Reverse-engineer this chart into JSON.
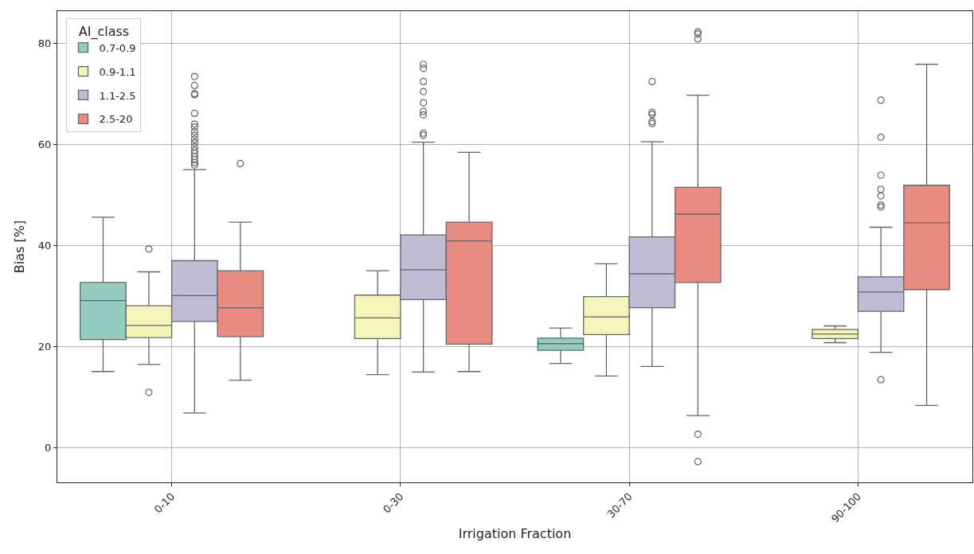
{
  "chart_data": {
    "type": "box",
    "xlabel": "Irrigation Fraction",
    "ylabel": "Bias [%]",
    "legend_title": "AI_class",
    "legend": "top left",
    "grid": true,
    "categories": [
      "0-10",
      "0-30",
      "30-70",
      "90-100"
    ],
    "ylim": [
      -6.8,
      86.3
    ],
    "yticks": [
      0,
      20,
      40,
      60,
      80
    ],
    "series": [
      {
        "name": "0.7-0.9",
        "color": "#93cdc1",
        "boxes": [
          {
            "low": 15.1,
            "q1": 21.4,
            "median": 29.1,
            "q3": 32.7,
            "high": 45.6
          },
          null,
          {
            "low": 16.7,
            "q1": 19.3,
            "median": 20.6,
            "q3": 21.7,
            "high": 23.7
          },
          null
        ]
      },
      {
        "name": "0.9-1.1",
        "color": "#f5f5bb",
        "boxes": [
          {
            "low": 16.5,
            "q1": 21.8,
            "median": 24.2,
            "q3": 28.1,
            "high": 34.8,
            "outliers": [
              39.3,
              11.0
            ]
          },
          {
            "low": 14.5,
            "q1": 21.6,
            "median": 25.7,
            "q3": 30.2,
            "high": 35.0
          },
          {
            "low": 14.2,
            "q1": 22.4,
            "median": 25.9,
            "q3": 29.9,
            "high": 36.4
          },
          {
            "low": 20.8,
            "q1": 21.6,
            "median": 22.5,
            "q3": 23.4,
            "high": 24.1
          }
        ]
      },
      {
        "name": "1.1-2.5",
        "color": "#c0bcd6",
        "boxes": [
          {
            "low": 6.9,
            "q1": 25.0,
            "median": 30.1,
            "q3": 37.0,
            "high": 55.0,
            "outliers": [
              73.4,
              71.6,
              70.0,
              69.8,
              66.1,
              64.0,
              63.4,
              62.5,
              61.8,
              61.0,
              60.3,
              59.5,
              58.8,
              58.2,
              57.6,
              57.0,
              56.4,
              55.9
            ]
          },
          {
            "low": 15.0,
            "q1": 29.3,
            "median": 35.2,
            "q3": 42.1,
            "high": 60.4,
            "outliers": [
              75.8,
              75.0,
              72.4,
              70.4,
              68.2,
              66.5,
              65.8,
              62.2,
              61.8
            ]
          },
          {
            "low": 16.1,
            "q1": 27.7,
            "median": 34.4,
            "q3": 41.7,
            "high": 60.5,
            "outliers": [
              72.4,
              66.3,
              65.9,
              64.5,
              64.1
            ]
          },
          {
            "low": 18.9,
            "q1": 27.0,
            "median": 30.8,
            "q3": 33.8,
            "high": 43.6,
            "outliers": [
              68.7,
              61.4,
              53.9,
              51.1,
              49.8,
              48.0,
              47.6,
              13.5
            ]
          }
        ]
      },
      {
        "name": "2.5-20",
        "color": "#e98b80",
        "boxes": [
          {
            "low": 13.4,
            "q1": 22.0,
            "median": 27.7,
            "q3": 35.0,
            "high": 44.6,
            "outliers": [
              56.2
            ]
          },
          {
            "low": 15.1,
            "q1": 20.5,
            "median": 40.9,
            "q3": 44.6,
            "high": 58.4
          },
          {
            "low": 6.4,
            "q1": 32.7,
            "median": 46.2,
            "q3": 51.5,
            "high": 69.7,
            "outliers": [
              82.2,
              81.8,
              80.8,
              2.7,
              -2.7
            ]
          },
          {
            "low": 8.4,
            "q1": 31.3,
            "median": 44.5,
            "q3": 51.9,
            "high": 75.8
          }
        ]
      }
    ]
  }
}
